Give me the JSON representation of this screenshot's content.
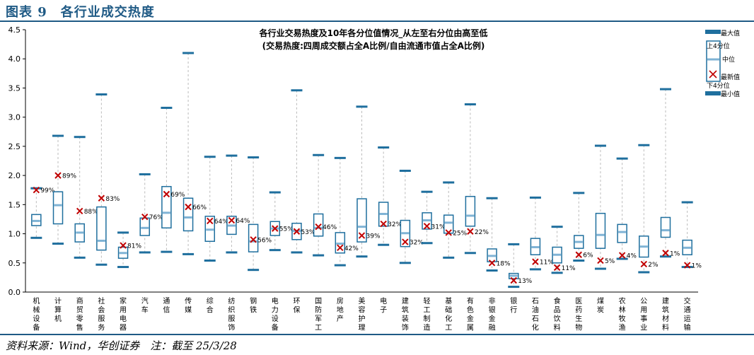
{
  "figure": {
    "title": "图表 9　各行业成交热度",
    "source": "资料来源：Wind，华创证券　注：截至 25/3/28"
  },
  "colors": {
    "box": "#1f6f9e",
    "median": "#7fb3d5",
    "latest": "#c00000",
    "whisker": "#bbbbbb"
  },
  "chart_data": {
    "type": "box",
    "title": "各行业交易热度及10年各分位值情况_从左至右分位由高至低",
    "subtitle": "(交易热度:四周成交额占全A比例/自由流通市值占全A比例)",
    "ylim": [
      0,
      4.5
    ],
    "yticks": [
      "0.0",
      "0.5",
      "1.0",
      "1.5",
      "2.0",
      "2.5",
      "3.0",
      "3.5",
      "4.0",
      "4.5"
    ],
    "legend": [
      "最大值",
      "上4分位",
      "中位",
      "最新值",
      "下4分位",
      "最小值"
    ],
    "series": [
      {
        "name": "机械设备",
        "max": 1.78,
        "q3": 1.33,
        "median": 1.22,
        "q1": 1.14,
        "min": 0.93,
        "latest": 1.75,
        "pct": "99%"
      },
      {
        "name": "计算机",
        "max": 2.68,
        "q3": 1.72,
        "median": 1.49,
        "q1": 1.17,
        "min": 0.83,
        "latest": 2.0,
        "pct": "89%"
      },
      {
        "name": "商贸零售",
        "max": 2.66,
        "q3": 1.17,
        "median": 1.02,
        "q1": 0.86,
        "min": 0.59,
        "latest": 1.39,
        "pct": "88%"
      },
      {
        "name": "社会服务",
        "max": 3.39,
        "q3": 1.46,
        "median": 0.88,
        "q1": 0.72,
        "min": 0.47,
        "latest": 1.61,
        "pct": "83%"
      },
      {
        "name": "家用电器",
        "max": 1.02,
        "q3": 0.77,
        "median": 0.67,
        "q1": 0.58,
        "min": 0.43,
        "latest": 0.8,
        "pct": "81%"
      },
      {
        "name": "汽车",
        "max": 2.02,
        "q3": 1.27,
        "median": 1.1,
        "q1": 0.97,
        "min": 0.68,
        "latest": 1.29,
        "pct": "76%"
      },
      {
        "name": "通信",
        "max": 3.16,
        "q3": 1.81,
        "median": 1.36,
        "q1": 1.1,
        "min": 0.69,
        "latest": 1.68,
        "pct": "69%"
      },
      {
        "name": "传媒",
        "max": 4.1,
        "q3": 1.61,
        "median": 1.28,
        "q1": 1.05,
        "min": 0.65,
        "latest": 1.46,
        "pct": "66%"
      },
      {
        "name": "综合",
        "max": 2.32,
        "q3": 1.3,
        "median": 1.07,
        "q1": 0.87,
        "min": 0.54,
        "latest": 1.22,
        "pct": "64%"
      },
      {
        "name": "纺织服饰",
        "max": 2.34,
        "q3": 1.3,
        "median": 1.14,
        "q1": 0.99,
        "min": 0.68,
        "latest": 1.23,
        "pct": "64%"
      },
      {
        "name": "钢铁",
        "max": 2.31,
        "q3": 1.16,
        "median": 0.87,
        "q1": 0.69,
        "min": 0.38,
        "latest": 0.9,
        "pct": "56%"
      },
      {
        "name": "电力设备",
        "max": 1.71,
        "q3": 1.21,
        "median": 1.09,
        "q1": 0.97,
        "min": 0.72,
        "latest": 1.09,
        "pct": "55%"
      },
      {
        "name": "环保",
        "max": 3.46,
        "q3": 1.18,
        "median": 1.05,
        "q1": 0.9,
        "min": 0.68,
        "latest": 1.04,
        "pct": "53%"
      },
      {
        "name": "国防军工",
        "max": 2.35,
        "q3": 1.34,
        "median": 1.1,
        "q1": 0.96,
        "min": 0.63,
        "latest": 1.12,
        "pct": "46%"
      },
      {
        "name": "房地产",
        "max": 2.3,
        "q3": 1.02,
        "median": 0.83,
        "q1": 0.67,
        "min": 0.46,
        "latest": 0.76,
        "pct": "42%"
      },
      {
        "name": "美容护理",
        "max": 3.18,
        "q3": 1.6,
        "median": 1.12,
        "q1": 0.86,
        "min": 0.61,
        "latest": 0.97,
        "pct": "39%"
      },
      {
        "name": "电子",
        "max": 2.48,
        "q3": 1.54,
        "median": 1.34,
        "q1": 1.13,
        "min": 0.81,
        "latest": 1.17,
        "pct": "32%"
      },
      {
        "name": "建筑装饰",
        "max": 2.08,
        "q3": 1.23,
        "median": 1.01,
        "q1": 0.78,
        "min": 0.5,
        "latest": 0.86,
        "pct": "32%"
      },
      {
        "name": "轻工制造",
        "max": 1.72,
        "q3": 1.36,
        "median": 1.23,
        "q1": 1.08,
        "min": 0.84,
        "latest": 1.13,
        "pct": "31%"
      },
      {
        "name": "基础化工",
        "max": 1.88,
        "q3": 1.32,
        "median": 1.19,
        "q1": 1.01,
        "min": 0.59,
        "latest": 1.02,
        "pct": "25%"
      },
      {
        "name": "有色金属",
        "max": 3.22,
        "q3": 1.64,
        "median": 1.31,
        "q1": 1.13,
        "min": 0.67,
        "latest": 1.04,
        "pct": "22%"
      },
      {
        "name": "非银金融",
        "max": 1.61,
        "q3": 0.74,
        "median": 0.62,
        "q1": 0.52,
        "min": 0.37,
        "latest": 0.5,
        "pct": "18%"
      },
      {
        "name": "银行",
        "max": 0.82,
        "q3": 0.32,
        "median": 0.28,
        "q1": 0.23,
        "min": 0.09,
        "latest": 0.2,
        "pct": "13%"
      },
      {
        "name": "石油石化",
        "max": 1.62,
        "q3": 0.92,
        "median": 0.77,
        "q1": 0.64,
        "min": 0.39,
        "latest": 0.52,
        "pct": "11%"
      },
      {
        "name": "食品饮料",
        "max": 1.12,
        "q3": 0.77,
        "median": 0.64,
        "q1": 0.5,
        "min": 0.33,
        "latest": 0.42,
        "pct": "11%"
      },
      {
        "name": "医药生物",
        "max": 1.7,
        "q3": 0.97,
        "median": 0.86,
        "q1": 0.75,
        "min": 0.54,
        "latest": 0.64,
        "pct": "6%"
      },
      {
        "name": "煤炭",
        "max": 2.51,
        "q3": 1.35,
        "median": 0.98,
        "q1": 0.75,
        "min": 0.4,
        "latest": 0.54,
        "pct": "5%"
      },
      {
        "name": "农林牧渔",
        "max": 2.29,
        "q3": 1.16,
        "median": 1.03,
        "q1": 0.85,
        "min": 0.57,
        "latest": 0.63,
        "pct": "4%"
      },
      {
        "name": "公用事业",
        "max": 2.52,
        "q3": 0.96,
        "median": 0.78,
        "q1": 0.6,
        "min": 0.34,
        "latest": 0.48,
        "pct": "2%"
      },
      {
        "name": "建筑材料",
        "max": 3.48,
        "q3": 1.28,
        "median": 1.06,
        "q1": 0.94,
        "min": 0.61,
        "latest": 0.67,
        "pct": "1%"
      },
      {
        "name": "交通运输",
        "max": 1.54,
        "q3": 0.89,
        "median": 0.76,
        "q1": 0.64,
        "min": 0.43,
        "latest": 0.46,
        "pct": "1%"
      }
    ]
  }
}
